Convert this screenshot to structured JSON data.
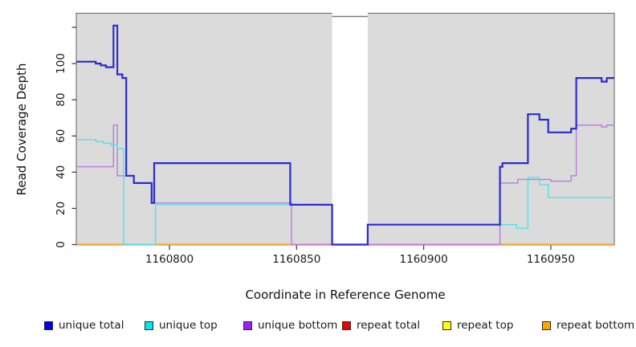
{
  "figure": {
    "xlabel": "Coordinate in Reference Genome",
    "ylabel": "Read Coverage Depth"
  },
  "legend": {
    "items": [
      {
        "label": "unique total",
        "swatch_color": "#0000EE"
      },
      {
        "label": "unique top",
        "swatch_color": "#00E5EE"
      },
      {
        "label": "unique bottom",
        "swatch_color": "#A020F0"
      },
      {
        "label": "repeat total",
        "swatch_color": "#EE0000"
      },
      {
        "label": "repeat top",
        "swatch_color": "#FFFF00"
      },
      {
        "label": "repeat bottom",
        "swatch_color": "#FFA500"
      }
    ]
  },
  "chart_data": {
    "type": "line",
    "subtype": "step-after-coverage-plot",
    "title": "",
    "xlabel": "Coordinate in Reference Genome",
    "ylabel": "Read Coverage Depth",
    "xlim": [
      1160763.5,
      1160975
    ],
    "ylim": [
      0,
      127
    ],
    "plot_bg": "#DBDBDB",
    "gap_region": {
      "start": 1160864,
      "end": 1160878,
      "fill": "#FFFFFF"
    },
    "x_ticks": [
      {
        "v": 1160800,
        "label": "1160800"
      },
      {
        "v": 1160850,
        "label": "1160850"
      },
      {
        "v": 1160900,
        "label": "1160900"
      },
      {
        "v": 1160950,
        "label": "1160950"
      }
    ],
    "y_ticks": [
      {
        "v": 0,
        "label": "0"
      },
      {
        "v": 20,
        "label": "20"
      },
      {
        "v": 40,
        "label": "40"
      },
      {
        "v": 60,
        "label": "60"
      },
      {
        "v": 80,
        "label": "80"
      },
      {
        "v": 100,
        "label": "100"
      },
      {
        "v": 120,
        "label": ""
      }
    ],
    "series": [
      {
        "name": "unique total",
        "color": "#2A2AD4",
        "width": 2.2,
        "steps": [
          [
            1160763.5,
            101
          ],
          [
            1160771,
            100
          ],
          [
            1160773,
            99
          ],
          [
            1160775,
            98
          ],
          [
            1160778,
            121
          ],
          [
            1160779.5,
            94
          ],
          [
            1160781.5,
            92
          ],
          [
            1160783,
            38
          ],
          [
            1160786,
            34
          ],
          [
            1160793,
            23
          ],
          [
            1160794,
            45
          ],
          [
            1160847.5,
            22
          ],
          [
            1160864,
            0
          ],
          [
            1160878,
            11
          ],
          [
            1160930,
            43
          ],
          [
            1160931,
            45
          ],
          [
            1160941,
            72
          ],
          [
            1160945.5,
            69
          ],
          [
            1160949,
            62
          ],
          [
            1160958,
            64
          ],
          [
            1160960,
            92
          ],
          [
            1160970,
            90
          ],
          [
            1160972,
            92
          ]
        ]
      },
      {
        "name": "unique top",
        "color": "#4FE3EC",
        "width": 1.4,
        "steps": [
          [
            1160763.5,
            58
          ],
          [
            1160771,
            57
          ],
          [
            1160774,
            56
          ],
          [
            1160777,
            55
          ],
          [
            1160779.5,
            53
          ],
          [
            1160782,
            0
          ],
          [
            1160794.5,
            22
          ],
          [
            1160864,
            0
          ],
          [
            1160878,
            11
          ],
          [
            1160936.5,
            9
          ],
          [
            1160941,
            37
          ],
          [
            1160945.5,
            33
          ],
          [
            1160949,
            26
          ]
        ]
      },
      {
        "name": "unique bottom",
        "color": "#BB79DD",
        "width": 1.4,
        "steps": [
          [
            1160763.5,
            43
          ],
          [
            1160778,
            66
          ],
          [
            1160779.5,
            38
          ],
          [
            1160786,
            34
          ],
          [
            1160793,
            23
          ],
          [
            1160848,
            0
          ],
          [
            1160930,
            34
          ],
          [
            1160937,
            36
          ],
          [
            1160950,
            35
          ],
          [
            1160958,
            38
          ],
          [
            1160960,
            66
          ],
          [
            1160970,
            65
          ],
          [
            1160972,
            66
          ]
        ]
      },
      {
        "name": "repeat total",
        "color": "#DD2A2A",
        "width": 1.4,
        "steps": [
          [
            1160763.5,
            0
          ]
        ]
      },
      {
        "name": "repeat top",
        "color": "#FFFF33",
        "width": 1.4,
        "steps": [
          [
            1160763.5,
            0
          ]
        ]
      },
      {
        "name": "repeat bottom",
        "color": "#FFA520",
        "width": 1.4,
        "steps": [
          [
            1160763.5,
            0
          ]
        ]
      }
    ],
    "draw_order": [
      "repeat top",
      "repeat total",
      "repeat bottom",
      "unique bottom",
      "unique top",
      "unique total"
    ],
    "legend_position": "bottom",
    "grid": false
  }
}
